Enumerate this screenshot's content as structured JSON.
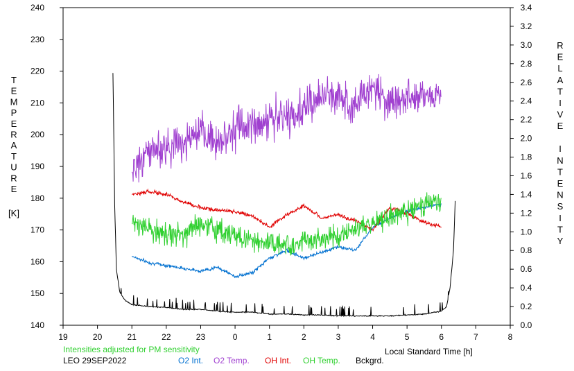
{
  "chart_data": {
    "type": "line",
    "x": {
      "label": "Local Standard Time [h]",
      "range": [
        19,
        32
      ],
      "ticks": [
        19,
        20,
        21,
        22,
        23,
        24,
        25,
        26,
        27,
        28,
        29,
        30,
        31,
        32
      ],
      "tick_labels": [
        "19",
        "20",
        "21",
        "22",
        "23",
        "0",
        "1",
        "2",
        "3",
        "4",
        "5",
        "6",
        "7",
        "8"
      ]
    },
    "y_left": {
      "label": "TEMPERATURE",
      "unit": "[K]",
      "range": [
        140,
        240
      ],
      "ticks": [
        140,
        150,
        160,
        170,
        180,
        190,
        200,
        210,
        220,
        230,
        240
      ]
    },
    "y_right": {
      "label": "RELATIVE INTENSITY",
      "range": [
        0,
        3.4
      ],
      "ticks": [
        0.0,
        0.2,
        0.4,
        0.6,
        0.8,
        1.0,
        1.2,
        1.4,
        1.6,
        1.8,
        2.0,
        2.2,
        2.4,
        2.6,
        2.8,
        3.0,
        3.2,
        3.4
      ],
      "tick_labels": [
        "0.0",
        "0.2",
        "0.4",
        "0.6",
        "0.8",
        "1.0",
        "1.2",
        "1.4",
        "1.6",
        "1.8",
        "2.0",
        "2.2",
        "2.4",
        "2.6",
        "2.8",
        "3.0",
        "3.2",
        "3.4"
      ]
    },
    "note": "Intensities adjusted for PM sensitivity",
    "station": "LEO 29SEP2022",
    "grid": false,
    "legend_position": "bottom",
    "series": [
      {
        "name": "O2 Int.",
        "axis": "right",
        "color": "#0070d0",
        "x": [
          21.0,
          21.5,
          22.0,
          22.5,
          23.0,
          23.5,
          24.0,
          24.25,
          24.5,
          25.0,
          25.5,
          26.0,
          26.5,
          27.0,
          27.5,
          28.0,
          28.5,
          29.0,
          29.5,
          30.0
        ],
        "y": [
          0.74,
          0.67,
          0.64,
          0.61,
          0.58,
          0.62,
          0.52,
          0.54,
          0.56,
          0.72,
          0.8,
          0.72,
          0.78,
          0.84,
          0.8,
          1.05,
          1.15,
          1.22,
          1.26,
          1.3
        ]
      },
      {
        "name": "O2 Temp.",
        "axis": "left",
        "color": "#a040d0",
        "x": [
          21.0,
          21.5,
          22.0,
          22.5,
          23.0,
          23.5,
          24.0,
          24.5,
          25.0,
          25.5,
          26.0,
          26.5,
          27.0,
          27.5,
          28.0,
          28.5,
          29.0,
          29.5,
          30.0
        ],
        "y": [
          188,
          195,
          196,
          198,
          200,
          198,
          202,
          203,
          205,
          205,
          208,
          212,
          212,
          210,
          215,
          210,
          212,
          213,
          212
        ]
      },
      {
        "name": "OH Int.",
        "axis": "right",
        "color": "#e00000",
        "x": [
          21.0,
          21.5,
          22.0,
          22.5,
          23.0,
          23.5,
          24.0,
          24.5,
          25.0,
          25.5,
          26.0,
          26.5,
          27.0,
          27.5,
          28.0,
          28.5,
          29.0,
          29.5,
          30.0
        ],
        "y": [
          1.4,
          1.43,
          1.4,
          1.32,
          1.26,
          1.23,
          1.22,
          1.17,
          1.05,
          1.18,
          1.28,
          1.15,
          1.18,
          1.12,
          1.02,
          1.26,
          1.2,
          1.1,
          1.05
        ]
      },
      {
        "name": "OH Temp.",
        "axis": "left",
        "color": "#30d030",
        "x": [
          21.0,
          21.5,
          22.0,
          22.5,
          23.0,
          23.5,
          24.0,
          24.5,
          25.0,
          25.5,
          26.0,
          26.5,
          27.0,
          27.5,
          28.0,
          28.5,
          29.0,
          29.5,
          30.0
        ],
        "y": [
          172,
          170,
          169,
          168,
          172,
          170,
          168,
          167,
          166,
          165,
          166,
          167,
          168,
          170,
          172,
          174,
          176,
          178,
          180
        ]
      },
      {
        "name": "Bckgrd.",
        "axis": "right",
        "color": "#000000",
        "x": [
          20.45,
          20.5,
          20.55,
          20.65,
          20.8,
          21.0,
          21.5,
          22.0,
          22.5,
          23.0,
          23.5,
          24.0,
          24.5,
          25.0,
          25.5,
          26.0,
          26.5,
          27.0,
          27.5,
          28.0,
          28.5,
          29.0,
          29.5,
          30.0,
          30.15,
          30.25,
          30.35,
          30.4
        ],
        "y": [
          2.7,
          1.3,
          0.6,
          0.35,
          0.27,
          0.22,
          0.2,
          0.19,
          0.17,
          0.17,
          0.15,
          0.14,
          0.14,
          0.12,
          0.12,
          0.11,
          0.11,
          0.1,
          0.1,
          0.1,
          0.1,
          0.11,
          0.12,
          0.15,
          0.2,
          0.4,
          0.8,
          1.33
        ]
      }
    ]
  }
}
